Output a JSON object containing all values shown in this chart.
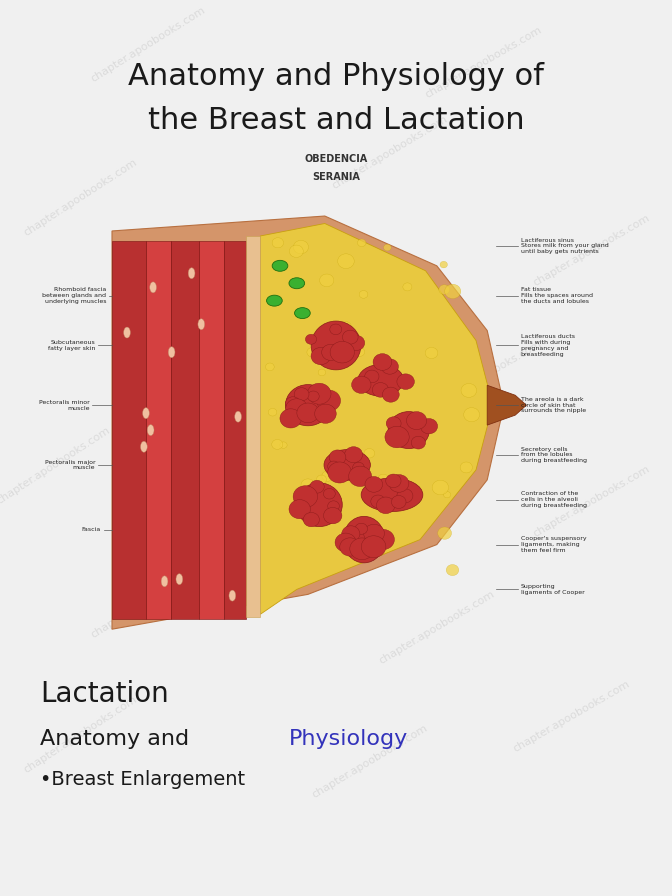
{
  "title_line1": "Anatomy and Physiology of",
  "title_line2": "the Breast and Lactation",
  "subtitle1": "OBEDENCIA",
  "subtitle2": "SERANIA",
  "section1_heading": "Lactation",
  "section2_black": "Anatomy and ",
  "section2_blue": "Physiology",
  "bullet1": "•Breast Enlargement",
  "bg_color": "#f0f0f0",
  "title_color": "#1a1a1a",
  "subtitle_color": "#333333",
  "section_color": "#1a1a1a",
  "blue_color": "#3333bb",
  "title_fontsize": 22,
  "subtitle_fontsize": 7,
  "section1_fontsize": 20,
  "section2_fontsize": 16,
  "bullet_fontsize": 14,
  "skin_color": "#d4956a",
  "fat_color": "#e8c840",
  "muscle_dark": "#b83030",
  "muscle_light": "#d44040",
  "lobe_color": "#c03030",
  "lobe_dark": "#8b1a1a",
  "green_color": "#3ab030",
  "fascia_color": "#e8c090",
  "label_fontsize": 4.5,
  "label_color": "#222222"
}
